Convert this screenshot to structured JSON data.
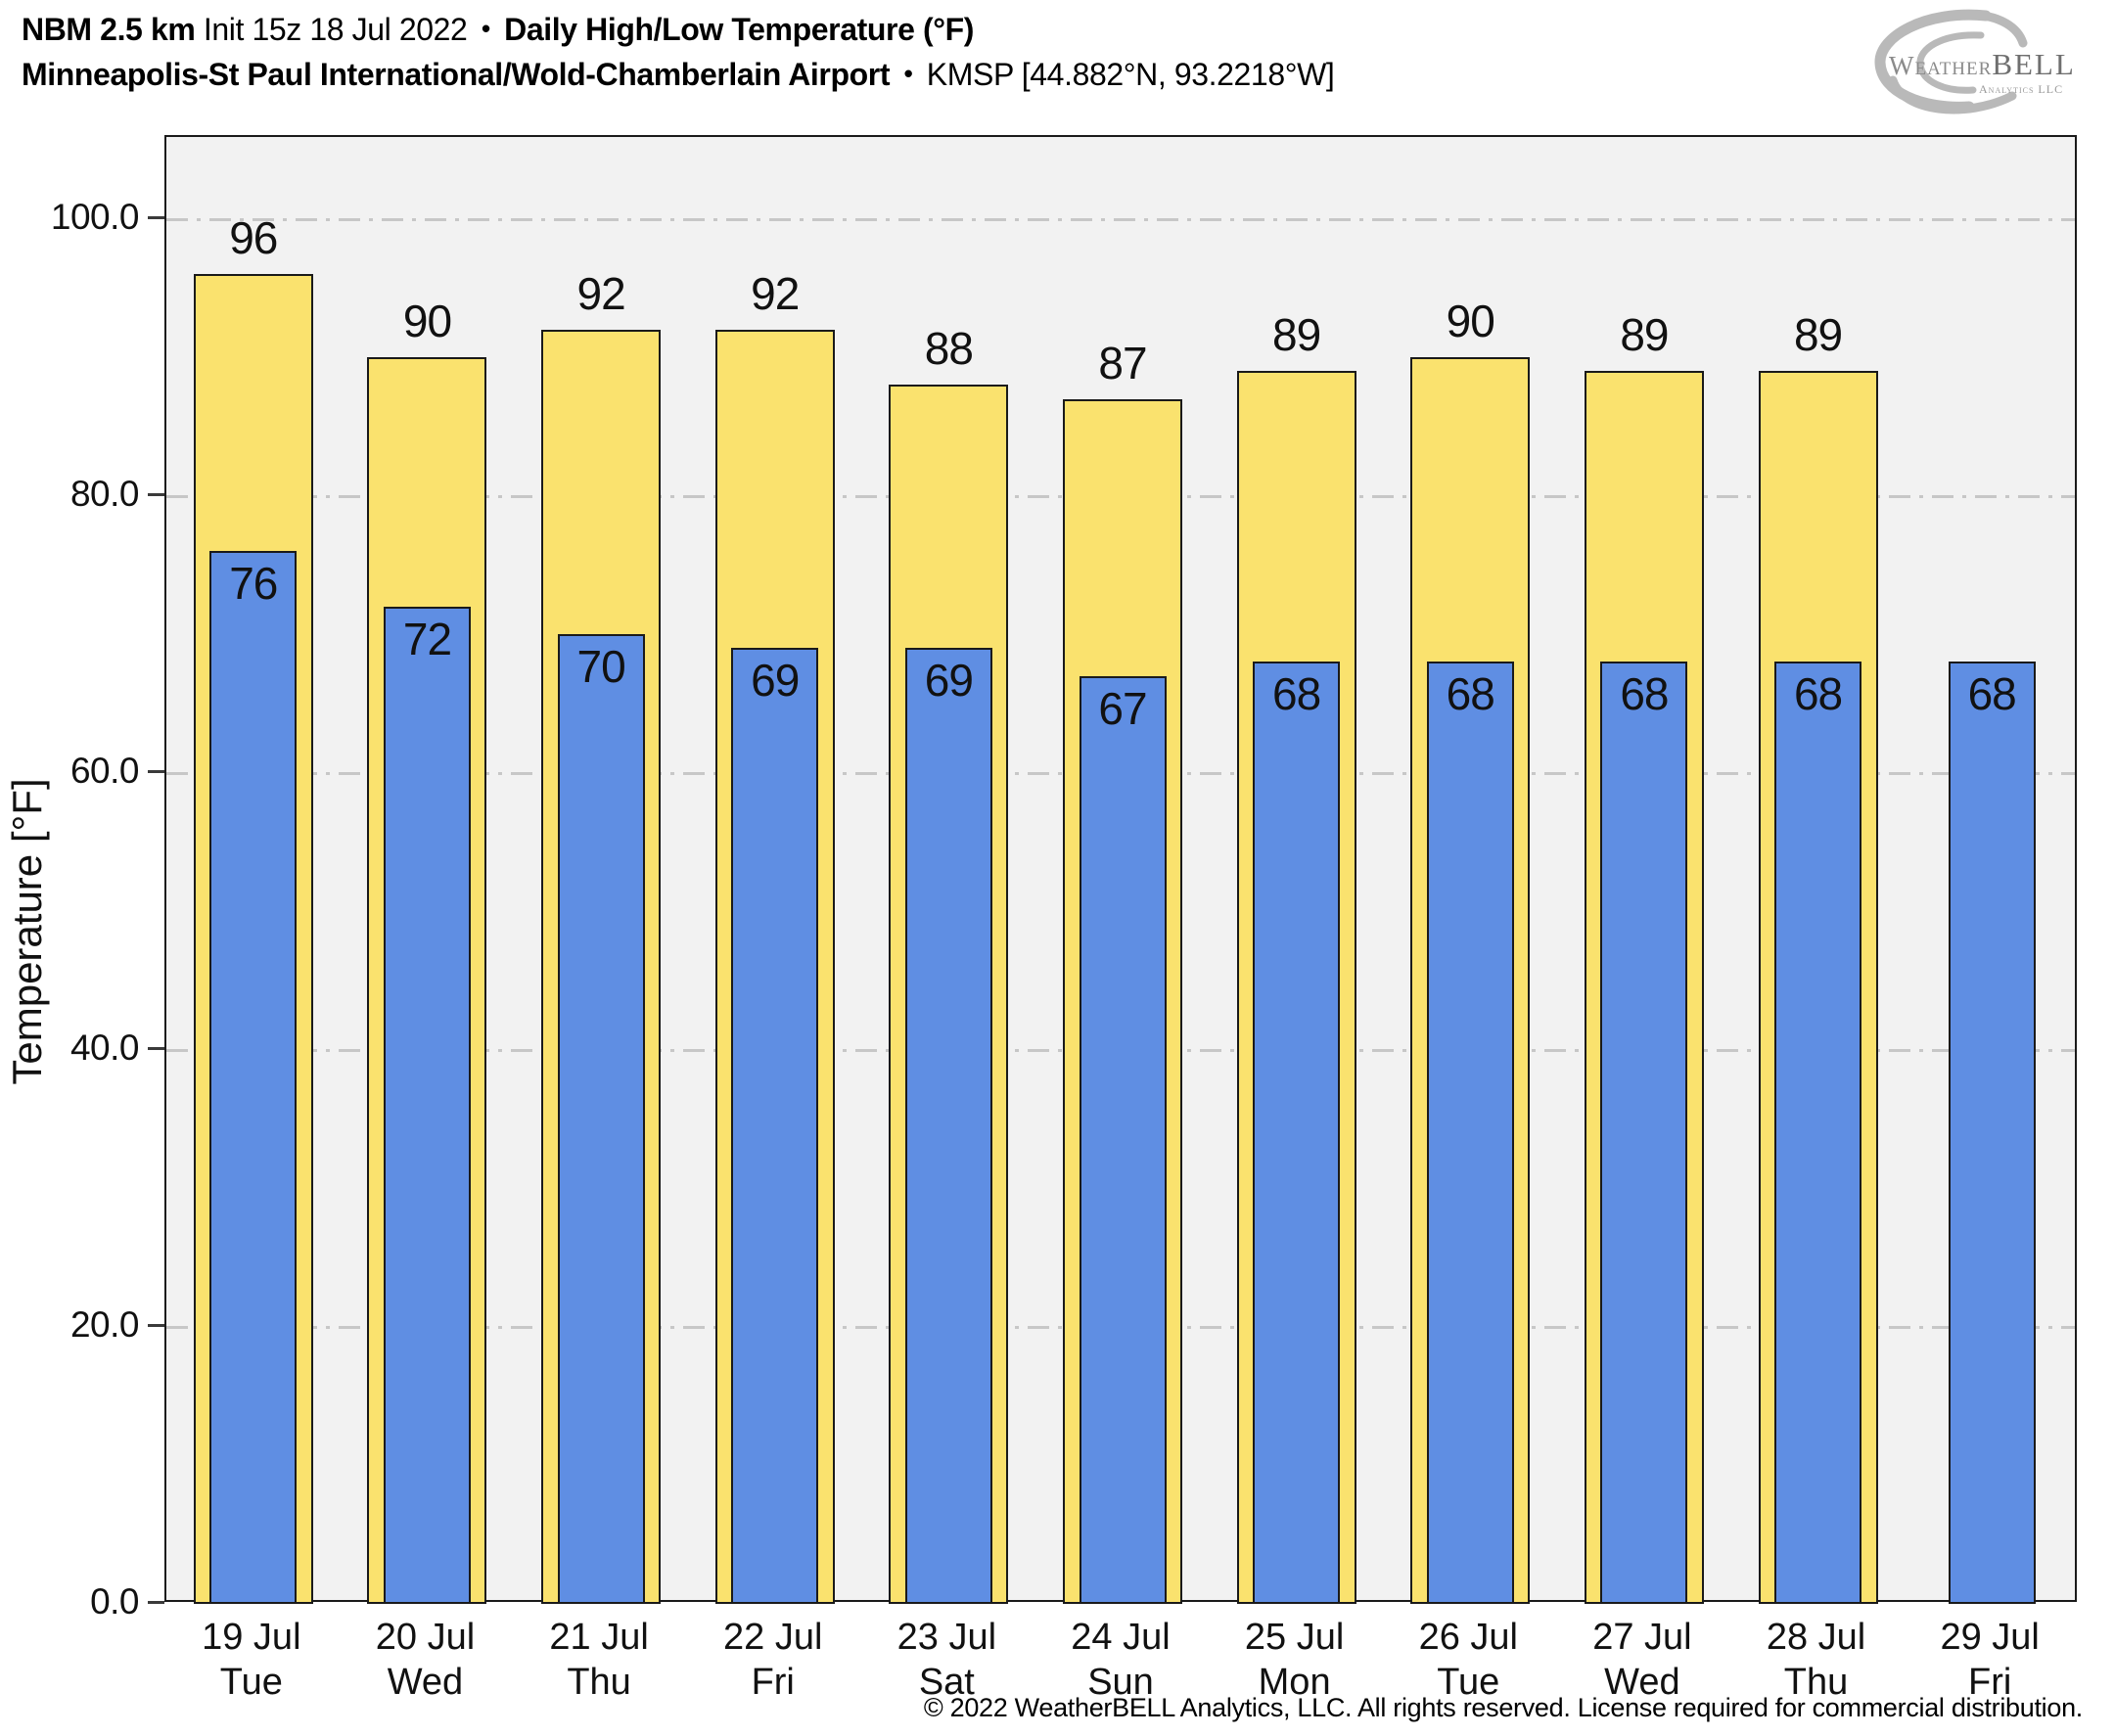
{
  "header": {
    "model": "NBM 2.5 km",
    "init": "Init 15z 18 Jul 2022",
    "bullet": "•",
    "product": "Daily High/Low Temperature (°F)",
    "station": "Minneapolis-St Paul International/Wold-Chamberlain Airport",
    "station_id": "KMSP [44.882°N, 93.2218°W]"
  },
  "logo": {
    "brand_weather": "Weather",
    "brand_bell": "BELL",
    "brand_sub": "Analytics LLC"
  },
  "chart_data": {
    "type": "bar",
    "title": "NBM 2.5 km Init 15z 18 Jul 2022 • Daily High/Low Temperature (°F)",
    "subtitle": "Minneapolis-St Paul International/Wold-Chamberlain Airport • KMSP [44.882°N, 93.2218°W]",
    "xlabel": "",
    "ylabel": "Temperature [°F]",
    "ylim": [
      0,
      105.9
    ],
    "grid": "horizontal dash-dot lines every 20 units",
    "legend_position": "none",
    "background": "#f2f2f2",
    "yticks": [
      {
        "value": 0,
        "label": "0.0"
      },
      {
        "value": 20,
        "label": "20.0"
      },
      {
        "value": 40,
        "label": "40.0"
      },
      {
        "value": 60,
        "label": "60.0"
      },
      {
        "value": 80,
        "label": "80.0"
      },
      {
        "value": 100,
        "label": "100.0"
      }
    ],
    "categories": [
      {
        "date": "19 Jul",
        "day": "Tue"
      },
      {
        "date": "20 Jul",
        "day": "Wed"
      },
      {
        "date": "21 Jul",
        "day": "Thu"
      },
      {
        "date": "22 Jul",
        "day": "Fri"
      },
      {
        "date": "23 Jul",
        "day": "Sat"
      },
      {
        "date": "24 Jul",
        "day": "Sun"
      },
      {
        "date": "25 Jul",
        "day": "Mon"
      },
      {
        "date": "26 Jul",
        "day": "Tue"
      },
      {
        "date": "27 Jul",
        "day": "Wed"
      },
      {
        "date": "28 Jul",
        "day": "Thu"
      },
      {
        "date": "29 Jul",
        "day": "Fri"
      }
    ],
    "series": [
      {
        "name": "Daily High",
        "color": "#fae26e",
        "border_color": "#1a1a1a",
        "values": [
          96,
          90,
          92,
          92,
          88,
          87,
          89,
          90,
          89,
          89,
          null
        ]
      },
      {
        "name": "Daily Low",
        "color": "#5f8ee3",
        "border_color": "#1a1a1a",
        "values": [
          76,
          72,
          70,
          69,
          69,
          67,
          68,
          68,
          68,
          68,
          68
        ]
      }
    ]
  },
  "footer": {
    "copyright": "© 2022 WeatherBELL Analytics, LLC. All rights reserved. License required for commercial distribution."
  }
}
